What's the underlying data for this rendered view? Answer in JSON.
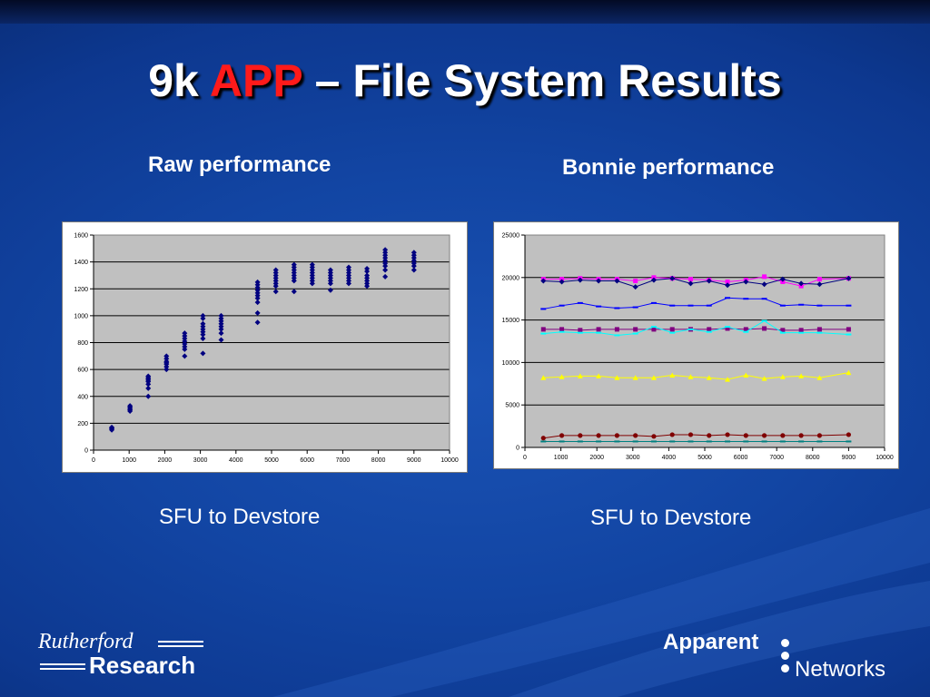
{
  "slide": {
    "title_pre": "9k ",
    "title_accent": "APP",
    "title_post": " – File System Results",
    "left_heading": "Raw performance",
    "right_heading": "Bonnie performance",
    "left_caption": "SFU to Devstore",
    "right_caption": "SFU to Devstore",
    "accent_color": "#ff1a1a",
    "background_color": "#1245a3"
  },
  "logos": {
    "left_top": "Rutherford",
    "left_bottom": "Research",
    "right_top": "Apparent",
    "right_bottom": "Networks"
  },
  "chart_data": [
    {
      "type": "scatter",
      "title": "",
      "xlabel": "",
      "ylabel": "",
      "xlim": [
        0,
        10000
      ],
      "ylim": [
        0,
        1600
      ],
      "xticks": [
        0,
        1000,
        2000,
        3000,
        4000,
        5000,
        6000,
        7000,
        8000,
        9000,
        10000
      ],
      "yticks": [
        0,
        200,
        400,
        600,
        800,
        1000,
        1200,
        1400,
        1600
      ],
      "grid": true,
      "legend": "none",
      "plot_bg": "#c0c0c0",
      "marker": "diamond",
      "series": [
        {
          "color": "#000080",
          "points": [
            [
              512,
              150
            ],
            [
              512,
              160
            ],
            [
              512,
              165
            ],
            [
              512,
              170
            ],
            [
              1024,
              290
            ],
            [
              1024,
              300
            ],
            [
              1024,
              310
            ],
            [
              1024,
              320
            ],
            [
              1024,
              330
            ],
            [
              1536,
              400
            ],
            [
              1536,
              460
            ],
            [
              1536,
              490
            ],
            [
              1536,
              510
            ],
            [
              1536,
              520
            ],
            [
              1536,
              530
            ],
            [
              1536,
              540
            ],
            [
              1536,
              550
            ],
            [
              2048,
              600
            ],
            [
              2048,
              620
            ],
            [
              2048,
              640
            ],
            [
              2048,
              650
            ],
            [
              2048,
              660
            ],
            [
              2048,
              680
            ],
            [
              2048,
              700
            ],
            [
              2560,
              700
            ],
            [
              2560,
              750
            ],
            [
              2560,
              770
            ],
            [
              2560,
              790
            ],
            [
              2560,
              810
            ],
            [
              2560,
              830
            ],
            [
              2560,
              850
            ],
            [
              2560,
              870
            ],
            [
              3072,
              720
            ],
            [
              3072,
              830
            ],
            [
              3072,
              860
            ],
            [
              3072,
              880
            ],
            [
              3072,
              900
            ],
            [
              3072,
              920
            ],
            [
              3072,
              940
            ],
            [
              3072,
              980
            ],
            [
              3072,
              1000
            ],
            [
              3584,
              820
            ],
            [
              3584,
              870
            ],
            [
              3584,
              900
            ],
            [
              3584,
              920
            ],
            [
              3584,
              940
            ],
            [
              3584,
              960
            ],
            [
              3584,
              980
            ],
            [
              3584,
              1000
            ],
            [
              4608,
              950
            ],
            [
              4608,
              1020
            ],
            [
              4608,
              1100
            ],
            [
              4608,
              1130
            ],
            [
              4608,
              1150
            ],
            [
              4608,
              1170
            ],
            [
              4608,
              1190
            ],
            [
              4608,
              1210
            ],
            [
              4608,
              1230
            ],
            [
              4608,
              1250
            ],
            [
              5120,
              1180
            ],
            [
              5120,
              1220
            ],
            [
              5120,
              1240
            ],
            [
              5120,
              1260
            ],
            [
              5120,
              1280
            ],
            [
              5120,
              1300
            ],
            [
              5120,
              1320
            ],
            [
              5120,
              1340
            ],
            [
              5632,
              1180
            ],
            [
              5632,
              1260
            ],
            [
              5632,
              1280
            ],
            [
              5632,
              1300
            ],
            [
              5632,
              1320
            ],
            [
              5632,
              1340
            ],
            [
              5632,
              1360
            ],
            [
              5632,
              1380
            ],
            [
              6144,
              1240
            ],
            [
              6144,
              1260
            ],
            [
              6144,
              1280
            ],
            [
              6144,
              1300
            ],
            [
              6144,
              1320
            ],
            [
              6144,
              1340
            ],
            [
              6144,
              1360
            ],
            [
              6144,
              1380
            ],
            [
              6656,
              1190
            ],
            [
              6656,
              1240
            ],
            [
              6656,
              1260
            ],
            [
              6656,
              1280
            ],
            [
              6656,
              1300
            ],
            [
              6656,
              1320
            ],
            [
              6656,
              1340
            ],
            [
              7168,
              1240
            ],
            [
              7168,
              1260
            ],
            [
              7168,
              1280
            ],
            [
              7168,
              1300
            ],
            [
              7168,
              1320
            ],
            [
              7168,
              1340
            ],
            [
              7168,
              1360
            ],
            [
              7680,
              1220
            ],
            [
              7680,
              1240
            ],
            [
              7680,
              1260
            ],
            [
              7680,
              1280
            ],
            [
              7680,
              1300
            ],
            [
              7680,
              1330
            ],
            [
              7680,
              1350
            ],
            [
              8192,
              1290
            ],
            [
              8192,
              1340
            ],
            [
              8192,
              1370
            ],
            [
              8192,
              1390
            ],
            [
              8192,
              1410
            ],
            [
              8192,
              1430
            ],
            [
              8192,
              1450
            ],
            [
              8192,
              1470
            ],
            [
              8192,
              1490
            ],
            [
              9000,
              1340
            ],
            [
              9000,
              1370
            ],
            [
              9000,
              1390
            ],
            [
              9000,
              1410
            ],
            [
              9000,
              1430
            ],
            [
              9000,
              1450
            ],
            [
              9000,
              1470
            ]
          ]
        }
      ]
    },
    {
      "type": "line",
      "title": "",
      "xlabel": "",
      "ylabel": "",
      "xlim": [
        0,
        10000
      ],
      "ylim": [
        0,
        25000
      ],
      "xticks": [
        0,
        1000,
        2000,
        3000,
        4000,
        5000,
        6000,
        7000,
        8000,
        9000,
        10000
      ],
      "yticks": [
        0,
        5000,
        10000,
        15000,
        20000,
        25000
      ],
      "grid": true,
      "legend": "none",
      "plot_bg": "#c0c0c0",
      "x": [
        512,
        1024,
        1536,
        2048,
        2560,
        3072,
        3584,
        4096,
        4608,
        5120,
        5632,
        6144,
        6656,
        7168,
        7680,
        8192,
        9000
      ],
      "series": [
        {
          "color": "#ff00ff",
          "marker": "square",
          "values": [
            19800,
            19800,
            19900,
            19800,
            19800,
            19600,
            20000,
            19900,
            19800,
            19700,
            19500,
            19700,
            20100,
            19500,
            19000,
            19800,
            19900
          ]
        },
        {
          "color": "#000080",
          "marker": "diamond",
          "values": [
            19600,
            19500,
            19700,
            19600,
            19600,
            18900,
            19700,
            19900,
            19300,
            19600,
            19100,
            19500,
            19200,
            19800,
            19300,
            19200,
            19900
          ]
        },
        {
          "color": "#0000ff",
          "marker": "dash",
          "values": [
            16300,
            16700,
            17000,
            16600,
            16400,
            16500,
            17000,
            16700,
            16700,
            16700,
            17600,
            17500,
            17500,
            16700,
            16800,
            16700,
            16700
          ]
        },
        {
          "color": "#800080",
          "marker": "square",
          "values": [
            13900,
            13900,
            13800,
            13900,
            13900,
            13900,
            13900,
            13900,
            13900,
            13900,
            14000,
            13900,
            14000,
            13800,
            13800,
            13900,
            13900
          ]
        },
        {
          "color": "#00ffff",
          "marker": "dash",
          "values": [
            13400,
            13600,
            13500,
            13500,
            13200,
            13400,
            14200,
            13500,
            13900,
            13600,
            14200,
            13600,
            14900,
            13500,
            13500,
            13500,
            13300
          ]
        },
        {
          "color": "#ffff00",
          "marker": "triangle",
          "values": [
            8200,
            8300,
            8400,
            8400,
            8200,
            8200,
            8200,
            8500,
            8300,
            8200,
            8000,
            8500,
            8100,
            8300,
            8400,
            8200,
            8800
          ]
        },
        {
          "color": "#800000",
          "marker": "circle",
          "values": [
            1100,
            1400,
            1400,
            1400,
            1400,
            1400,
            1300,
            1500,
            1500,
            1400,
            1500,
            1400,
            1400,
            1400,
            1400,
            1400,
            1500
          ]
        },
        {
          "color": "#008080",
          "marker": "dash",
          "values": [
            700,
            700,
            700,
            700,
            700,
            700,
            700,
            700,
            700,
            700,
            700,
            700,
            700,
            700,
            700,
            700,
            700
          ]
        }
      ]
    }
  ]
}
